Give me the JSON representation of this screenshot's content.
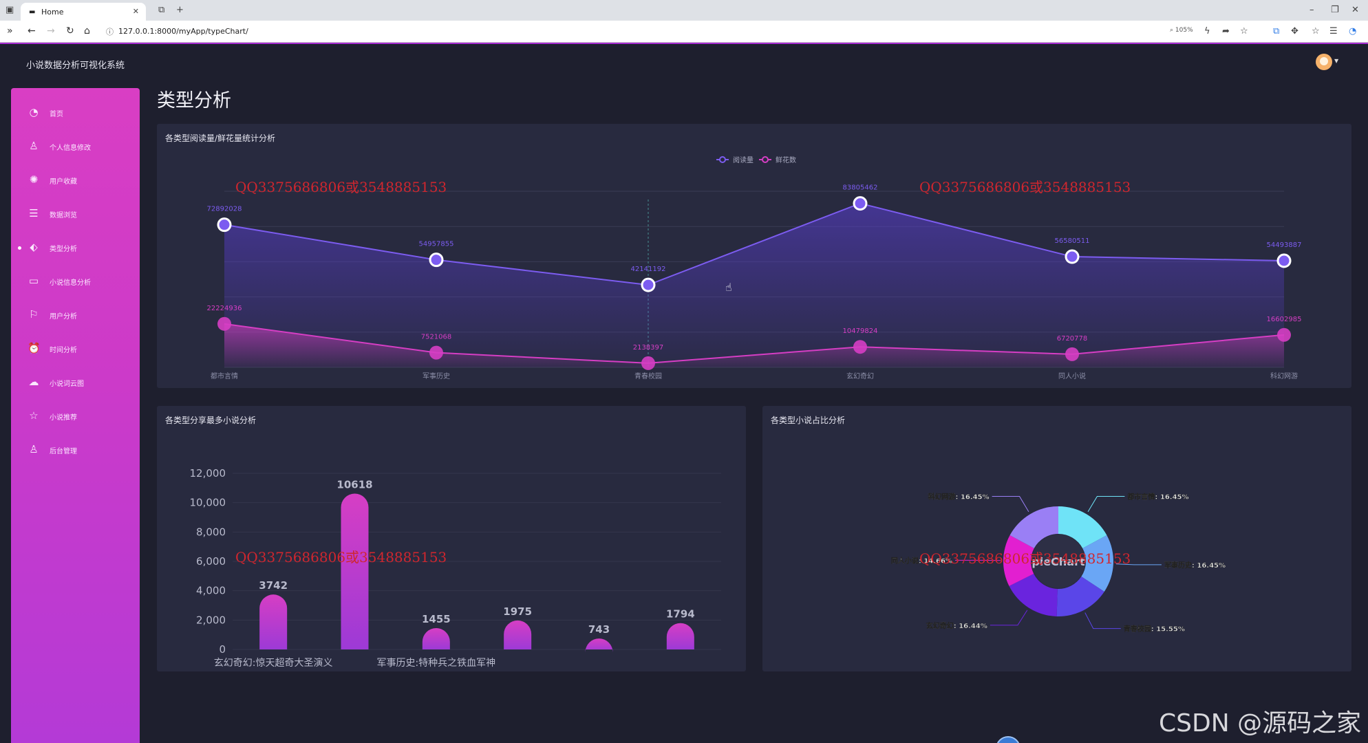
{
  "browser": {
    "tab_title": "Home",
    "url": "127.0.0.1:8000/myApp/typeChart/",
    "zoom": "105%"
  },
  "app": {
    "title": "小说数据分析可视化系统",
    "page_title": "类型分析"
  },
  "sidebar": {
    "items": [
      {
        "label": "首页",
        "icon": "pie-icon"
      },
      {
        "label": "个人信息修改",
        "icon": "user-icon"
      },
      {
        "label": "用户收藏",
        "icon": "atom-icon"
      },
      {
        "label": "数据浏览",
        "icon": "list-icon"
      },
      {
        "label": "类型分析",
        "icon": "tag-icon",
        "active": true
      },
      {
        "label": "小说信息分析",
        "icon": "book-icon"
      },
      {
        "label": "用户分析",
        "icon": "run-icon"
      },
      {
        "label": "时间分析",
        "icon": "alarm-icon"
      },
      {
        "label": "小说词云图",
        "icon": "cloud-icon"
      },
      {
        "label": "小说推荐",
        "icon": "star-icon"
      },
      {
        "label": "后台管理",
        "icon": "admin-icon"
      }
    ]
  },
  "cards": {
    "line": {
      "title": "各类型阅读量/鲜花量统计分析"
    },
    "bar": {
      "title": "各类型分享最多小说分析"
    },
    "pie": {
      "title": "各类型小说占比分析"
    }
  },
  "watermark_text": "QQ3375686806或3548885153",
  "footer_watermark": "CSDN @源码之家",
  "chart_data": [
    {
      "type": "line",
      "categories": [
        "都市言情",
        "军事历史",
        "青春校园",
        "玄幻奇幻",
        "同人小说",
        "科幻网游"
      ],
      "series": [
        {
          "name": "阅读量",
          "values": [
            72892028,
            54957855,
            42141192,
            83805462,
            56580511,
            54493887
          ],
          "color": "#7c5cf0"
        },
        {
          "name": "鲜花数",
          "values": [
            22224936,
            7521068,
            2138397,
            10479824,
            6720778,
            16602985
          ],
          "color": "#d63ec4"
        }
      ],
      "legend": "top-center",
      "grid": true
    },
    {
      "type": "bar",
      "categories": [
        "玄幻奇幻:惊天超奇大圣演义",
        "",
        "军事历史:特种兵之铁血军神",
        "",
        "",
        ""
      ],
      "values": [
        3742,
        10618,
        1455,
        1975,
        743,
        1794
      ],
      "ylim": [
        0,
        12000
      ],
      "yticks": [
        "12,000",
        "10,000",
        "8,000",
        "6,000",
        "4,000",
        "2,000",
        "0"
      ],
      "grid": true
    },
    {
      "type": "pie",
      "title": "pieChart",
      "slices": [
        {
          "label": "都市言情",
          "percent": "16.45%",
          "value": 16.45,
          "color": "#6fe3f7"
        },
        {
          "label": "军事历史",
          "percent": "16.45%",
          "value": 16.45,
          "color": "#6aa6f5"
        },
        {
          "label": "青春校园",
          "percent": "15.55%",
          "value": 15.55,
          "color": "#5a46e8"
        },
        {
          "label": "玄幻奇幻",
          "percent": "16.44%",
          "value": 16.44,
          "color": "#6a24de"
        },
        {
          "label": "同人小说",
          "percent": "14.66%",
          "value": 14.66,
          "color": "#e21fd0"
        },
        {
          "label": "科幻网游",
          "percent": "16.45%",
          "value": 16.45,
          "color": "#9a7ff5"
        }
      ]
    }
  ]
}
